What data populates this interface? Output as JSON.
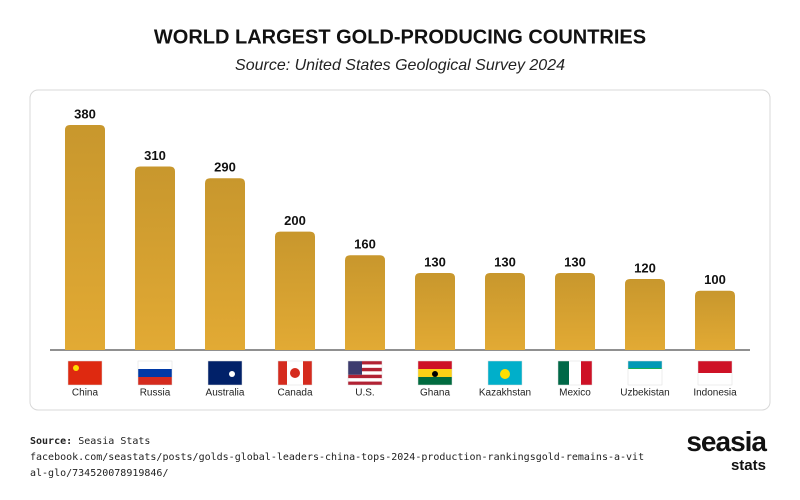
{
  "chart_data": {
    "type": "bar",
    "title": "WORLD LARGEST GOLD-PRODUCING COUNTRIES",
    "subtitle": "Source: United States Geological Survey 2024",
    "categories": [
      "China",
      "Russia",
      "Australia",
      "Canada",
      "U.S.",
      "Ghana",
      "Kazakhstan",
      "Mexico",
      "Uzbekistan",
      "Indonesia"
    ],
    "values": [
      380,
      310,
      290,
      200,
      160,
      130,
      130,
      130,
      120,
      100
    ],
    "color": "#e2aa34"
  },
  "footer": {
    "source_label": "Source:",
    "source": "Seasia Stats",
    "url": "facebook.com/seastats/posts/golds-global-leaders-china-tops-2024-production-rankingsgold-remains-a-vital-glo/734520078919846/"
  },
  "logo": {
    "name": "seasia",
    "tagline": "stats"
  }
}
